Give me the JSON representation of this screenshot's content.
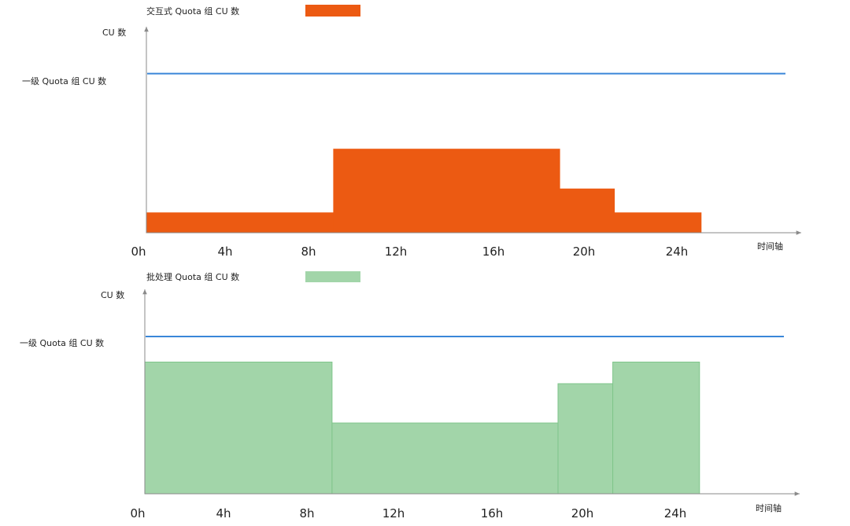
{
  "chart_data": [
    {
      "type": "area",
      "legend": "交互式 Quota 组 CU 数",
      "ylabel": "CU 数",
      "xlabel": "时间轴",
      "reference_line_label": "一级 Quota 组 CU 数",
      "ticks": [
        "0h",
        "4h",
        "8h",
        "12h",
        "16h",
        "20h",
        "24h"
      ],
      "colors": {
        "fill": "#ec5a12",
        "stroke": "#ec5a12",
        "reference": "#3a86d9",
        "axis": "#8a8a8a"
      },
      "xlim": [
        0,
        28.2
      ],
      "ylim": [
        0,
        1
      ],
      "reference_level": 0.8,
      "steps": [
        {
          "x0": 0,
          "x1": 8.2,
          "y": 0.1
        },
        {
          "x0": 8.2,
          "x1": 18.1,
          "y": 0.42
        },
        {
          "x0": 18.1,
          "x1": 20.5,
          "y": 0.22
        },
        {
          "x0": 20.5,
          "x1": 24.3,
          "y": 0.1
        }
      ]
    },
    {
      "type": "area",
      "legend": "批处理 Quota 组 CU 数",
      "ylabel": "CU 数",
      "xlabel": "时间轴",
      "reference_line_label": "一级 Quota 组 CU 数",
      "ticks": [
        "0h",
        "4h",
        "8h",
        "12h",
        "16h",
        "20h",
        "24h"
      ],
      "colors": {
        "fill": "#a2d5a9",
        "stroke": "#7fc58a",
        "reference": "#3a86d9",
        "axis": "#8a8a8a"
      },
      "xlim": [
        0,
        28.2
      ],
      "ylim": [
        0,
        1
      ],
      "reference_level": 0.8,
      "steps": [
        {
          "x0": 0,
          "x1": 8.2,
          "y": 0.67
        },
        {
          "x0": 8.2,
          "x1": 18.1,
          "y": 0.36
        },
        {
          "x0": 18.1,
          "x1": 20.5,
          "y": 0.56
        },
        {
          "x0": 20.5,
          "x1": 24.3,
          "y": 0.67
        }
      ]
    }
  ]
}
